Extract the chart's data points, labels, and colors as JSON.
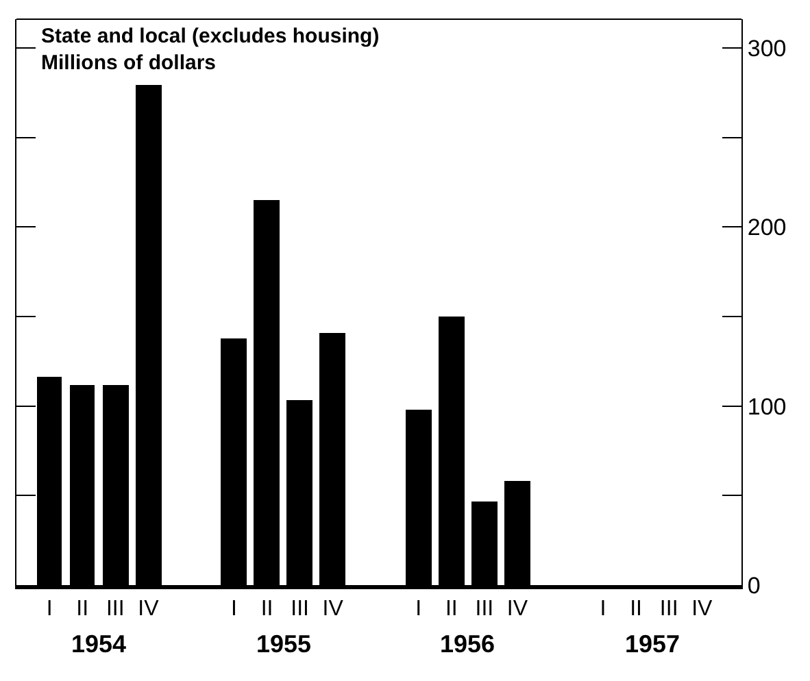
{
  "chart_data": {
    "type": "bar",
    "title": "State and local (excludes housing)",
    "ylabel": "Millions of dollars",
    "categories": [
      "I",
      "II",
      "III",
      "IV",
      "I",
      "II",
      "III",
      "IV",
      "I",
      "II",
      "III",
      "IV",
      "I",
      "II",
      "III",
      "IV"
    ],
    "values": [
      116,
      112,
      112,
      279,
      138,
      215,
      103,
      141,
      98,
      150,
      47,
      58,
      null,
      null,
      null,
      null
    ],
    "color": "#000000",
    "annotations": [
      "1954",
      "1955",
      "1956",
      "1957"
    ],
    "ylim": [
      0,
      316
    ],
    "yticks": [
      0,
      {
        "value": 50,
        "label": null
      },
      100,
      {
        "value": 150,
        "label": null
      },
      200,
      {
        "value": 250,
        "label": null
      },
      300
    ],
    "tick_labels": true
  }
}
